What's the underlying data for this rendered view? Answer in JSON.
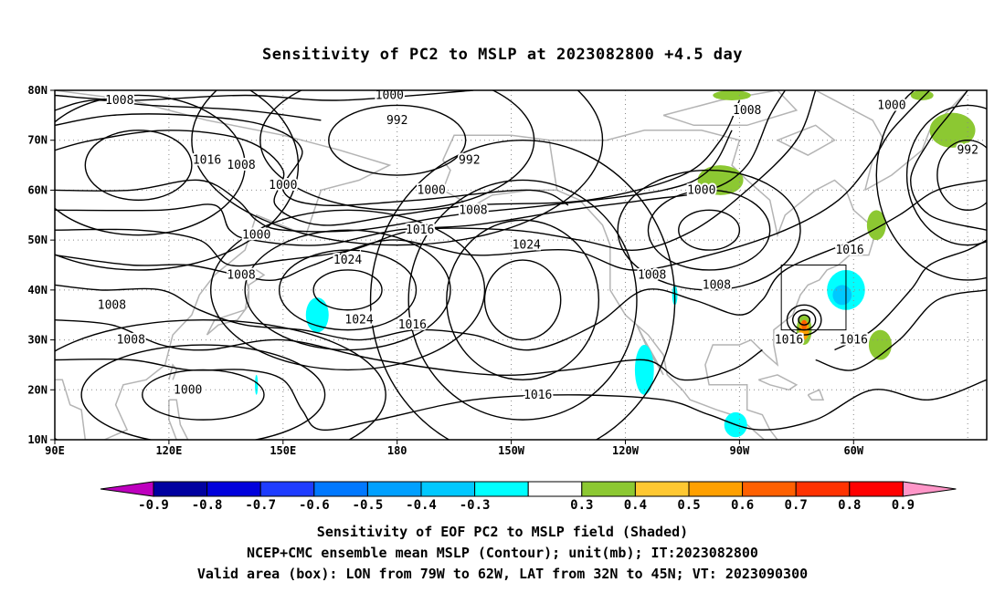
{
  "title": "Sensitivity of PC2 to MSLP at 2023082800 +4.5 day",
  "map": {
    "lat_labels": [
      "80N",
      "70N",
      "60N",
      "50N",
      "40N",
      "30N",
      "20N",
      "10N"
    ],
    "lon_labels": [
      "90E",
      "120E",
      "150E",
      "180",
      "150W",
      "120W",
      "90W",
      "60W"
    ],
    "lon_range_deg_east": [
      90,
      335
    ],
    "lat_range": [
      10,
      80
    ],
    "grid": "dotted",
    "contour_labels": [
      {
        "text": "1008",
        "lon": 107,
        "lat": 78
      },
      {
        "text": "1000",
        "lon": 178,
        "lat": 79
      },
      {
        "text": "992",
        "lon": 180,
        "lat": 74
      },
      {
        "text": "1008",
        "lon": 272,
        "lat": 76
      },
      {
        "text": "1000",
        "lon": 310,
        "lat": 77
      },
      {
        "text": "992",
        "lon": 330,
        "lat": 68
      },
      {
        "text": "1016",
        "lon": 130,
        "lat": 66
      },
      {
        "text": "1008",
        "lon": 139,
        "lat": 65
      },
      {
        "text": "1000",
        "lon": 150,
        "lat": 61
      },
      {
        "text": "992",
        "lon": 199,
        "lat": 66
      },
      {
        "text": "1000",
        "lon": 189,
        "lat": 60
      },
      {
        "text": "1008",
        "lon": 200,
        "lat": 56
      },
      {
        "text": "1000",
        "lon": 260,
        "lat": 60
      },
      {
        "text": "1016",
        "lon": 186,
        "lat": 52
      },
      {
        "text": "1000",
        "lon": 143,
        "lat": 51
      },
      {
        "text": "1024",
        "lon": 167,
        "lat": 46
      },
      {
        "text": "1024",
        "lon": 214,
        "lat": 49
      },
      {
        "text": "1008",
        "lon": 139,
        "lat": 43
      },
      {
        "text": "1008",
        "lon": 105,
        "lat": 37
      },
      {
        "text": "1024",
        "lon": 170,
        "lat": 34
      },
      {
        "text": "1016",
        "lon": 184,
        "lat": 33
      },
      {
        "text": "1008",
        "lon": 247,
        "lat": 43
      },
      {
        "text": "1008",
        "lon": 264,
        "lat": 41
      },
      {
        "text": "1016",
        "lon": 299,
        "lat": 48
      },
      {
        "text": "1008",
        "lon": 110,
        "lat": 30
      },
      {
        "text": "1016",
        "lon": 283,
        "lat": 30
      },
      {
        "text": "1016",
        "lon": 300,
        "lat": 30
      },
      {
        "text": "1000",
        "lon": 125,
        "lat": 20
      },
      {
        "text": "1016",
        "lon": 217,
        "lat": 19
      }
    ],
    "pressure_centers": [
      {
        "kind": "high",
        "lon": 167,
        "lat": 40,
        "rx": 9,
        "ry": 4
      },
      {
        "kind": "high",
        "lon": 213,
        "lat": 38,
        "rx": 10,
        "ry": 8
      },
      {
        "kind": "low",
        "lon": 180,
        "lat": 70,
        "rx": 18,
        "ry": 7
      },
      {
        "kind": "low",
        "lon": 112,
        "lat": 65,
        "rx": 14,
        "ry": 7
      },
      {
        "kind": "low",
        "lon": 262,
        "lat": 52,
        "rx": 8,
        "ry": 4
      },
      {
        "kind": "low",
        "lon": 330,
        "lat": 63,
        "rx": 8,
        "ry": 7
      },
      {
        "kind": "low",
        "lon": 129,
        "lat": 19,
        "rx": 16,
        "ry": 5
      },
      {
        "kind": "low",
        "lon": 287,
        "lat": 34,
        "rx": 1.5,
        "ry": 1
      }
    ],
    "shaded_regions": [
      {
        "value_class": "0.3-0.4",
        "color": "#8cc832",
        "lon": 265,
        "lat": 62,
        "rx": 6,
        "ry": 3
      },
      {
        "value_class": "0.3-0.4",
        "color": "#8cc832",
        "lon": 326,
        "lat": 72,
        "rx": 6,
        "ry": 3.5
      },
      {
        "value_class": "0.3-0.4",
        "color": "#8cc832",
        "lon": 268,
        "lat": 79,
        "rx": 5,
        "ry": 1
      },
      {
        "value_class": "0.3-0.4",
        "color": "#8cc832",
        "lon": 318,
        "lat": 79,
        "rx": 3,
        "ry": 1
      },
      {
        "value_class": "0.3-0.4",
        "color": "#8cc832",
        "lon": 306,
        "lat": 53,
        "rx": 2.5,
        "ry": 3
      },
      {
        "value_class": "0.3-0.4",
        "color": "#8cc832",
        "lon": 307,
        "lat": 29,
        "rx": 3,
        "ry": 3
      },
      {
        "value_class": "0.3-0.4",
        "color": "#8cc832",
        "lon": 287,
        "lat": 32,
        "rx": 2,
        "ry": 3
      },
      {
        "value_class": "0.5-0.6",
        "color": "#ffa000",
        "lon": 287,
        "lat": 32,
        "rx": 1.3,
        "ry": 2
      },
      {
        "value_class": "0.6-0.7",
        "color": "#ff6000",
        "lon": 287,
        "lat": 33,
        "rx": 0.7,
        "ry": 1
      },
      {
        "value_class": "-0.4--0.3",
        "color": "#00ffff",
        "lon": 298,
        "lat": 40,
        "rx": 5,
        "ry": 4
      },
      {
        "value_class": "-0.5--0.4",
        "color": "#00c8ff",
        "lon": 297,
        "lat": 39,
        "rx": 2.5,
        "ry": 2
      },
      {
        "value_class": "-0.4--0.3",
        "color": "#00ffff",
        "lon": 159,
        "lat": 35,
        "rx": 3,
        "ry": 3.5
      },
      {
        "value_class": "-0.4--0.3",
        "color": "#00ffff",
        "lon": 245,
        "lat": 24,
        "rx": 2.5,
        "ry": 5
      },
      {
        "value_class": "-0.4--0.3",
        "color": "#00ffff",
        "lon": 269,
        "lat": 13,
        "rx": 3,
        "ry": 2.5
      },
      {
        "value_class": "-0.4--0.3",
        "color": "#00ffff",
        "lon": 253,
        "lat": 39,
        "rx": 0.7,
        "ry": 2
      },
      {
        "value_class": "-0.4--0.3",
        "color": "#00ffff",
        "lon": 143,
        "lat": 21,
        "rx": 0.4,
        "ry": 2
      }
    ],
    "valid_area_box": {
      "lon": [
        281,
        298
      ],
      "lat": [
        32,
        45
      ]
    }
  },
  "colorbar": {
    "labels": [
      "-0.9",
      "-0.8",
      "-0.7",
      "-0.6",
      "-0.5",
      "-0.4",
      "-0.3",
      "0.3",
      "0.4",
      "0.5",
      "0.6",
      "0.7",
      "0.8",
      "0.9"
    ],
    "colors": [
      "#be00be",
      "#0000a0",
      "#0000dc",
      "#1e3cff",
      "#0078ff",
      "#00a0ff",
      "#00c8ff",
      "#00ffff",
      "#ffffff",
      "#8cc832",
      "#ffc832",
      "#ffa000",
      "#ff6000",
      "#ff3200",
      "#ff0000",
      "#ff96c8"
    ]
  },
  "captions": [
    "Sensitivity of EOF PC2 to MSLP field (Shaded)",
    "NCEP+CMC ensemble mean MSLP (Contour); unit(mb); IT:2023082800",
    "Valid area (box): LON from 79W to 62W, LAT from 32N to 45N; VT: 2023090300"
  ]
}
